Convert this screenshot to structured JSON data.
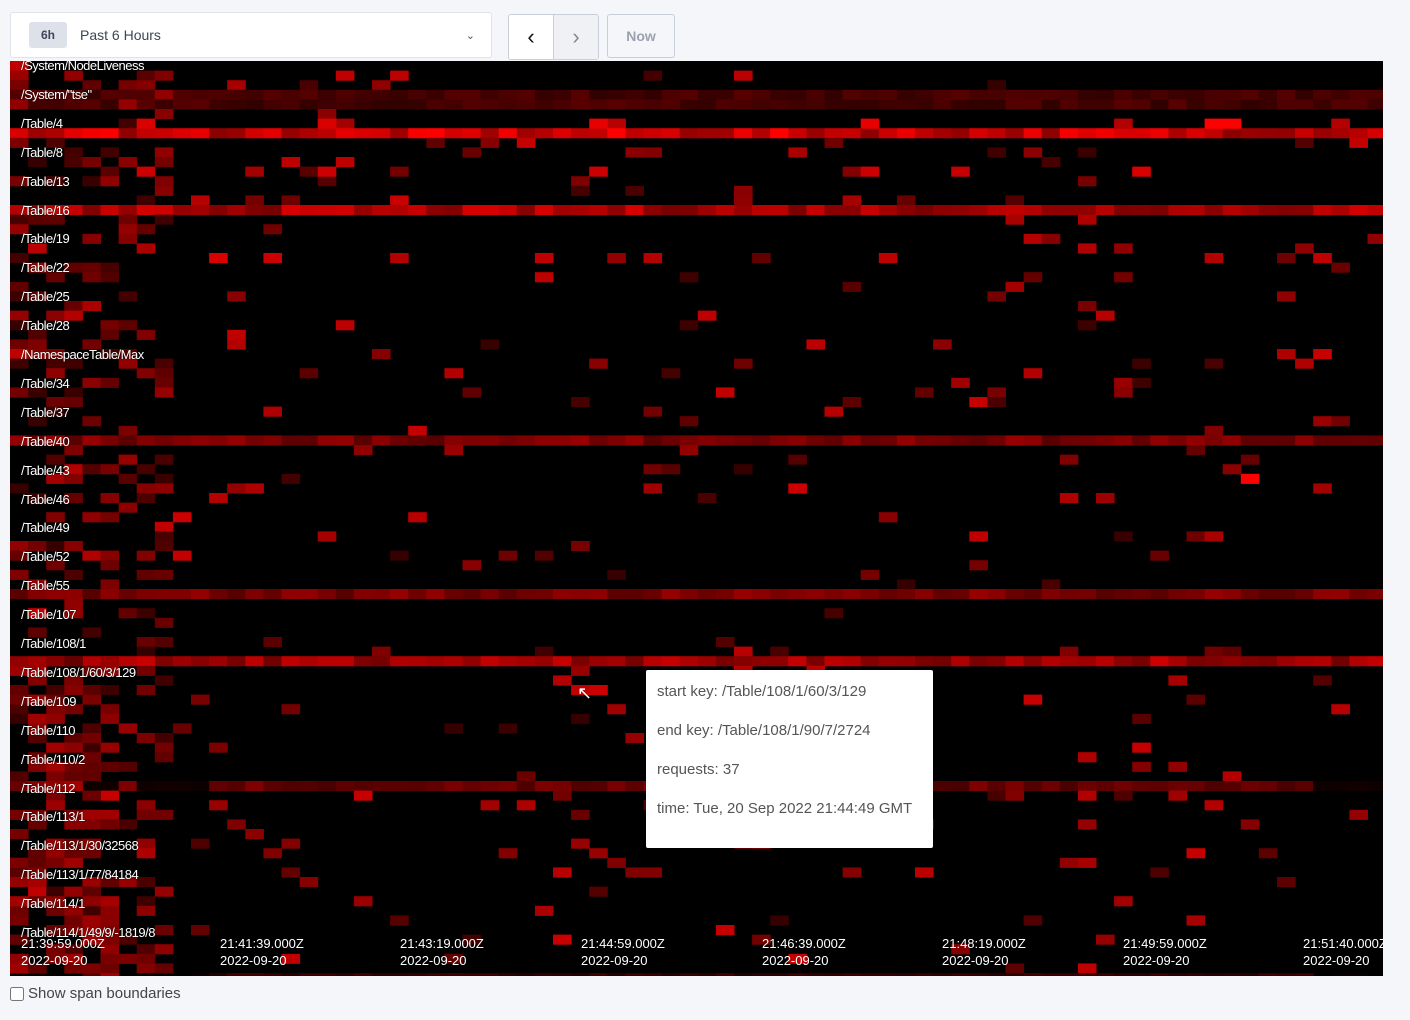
{
  "time_range": {
    "badge": "6h",
    "label": "Past 6 Hours"
  },
  "nav": {
    "prev": "‹",
    "next": "›",
    "now": "Now"
  },
  "key_labels": [
    "/System/NodeLiveness",
    "/System/\"tse\"",
    "/Table/4",
    "/Table/8",
    "/Table/13",
    "/Table/16",
    "/Table/19",
    "/Table/22",
    "/Table/25",
    "/Table/28",
    "/NamespaceTable/Max",
    "/Table/34",
    "/Table/37",
    "/Table/40",
    "/Table/43",
    "/Table/46",
    "/Table/49",
    "/Table/52",
    "/Table/55",
    "/Table/107",
    "/Table/108/1",
    "/Table/108/1/60/3/129",
    "/Table/109",
    "/Table/110",
    "/Table/110/2",
    "/Table/112",
    "/Table/113/1",
    "/Table/113/1/30/32568",
    "/Table/113/1/77/84184",
    "/Table/114/1",
    "/Table/114/1/49/9/-1819/8"
  ],
  "time_ticks": [
    {
      "time": "21:39:59.000Z",
      "date": "2022-09-20"
    },
    {
      "time": "21:41:39.000Z",
      "date": "2022-09-20"
    },
    {
      "time": "21:43:19.000Z",
      "date": "2022-09-20"
    },
    {
      "time": "21:44:59.000Z",
      "date": "2022-09-20"
    },
    {
      "time": "21:46:39.000Z",
      "date": "2022-09-20"
    },
    {
      "time": "21:48:19.000Z",
      "date": "2022-09-20"
    },
    {
      "time": "21:49:59.000Z",
      "date": "2022-09-20"
    },
    {
      "time": "21:51:40.000Z",
      "date": "2022-09-20"
    }
  ],
  "tooltip": {
    "start_key": "start key: /Table/108/1/60/3/129",
    "end_key": "end key: /Table/108/1/90/7/2724",
    "requests": "requests: 37",
    "time": "time: Tue, 20 Sep 2022 21:44:49 GMT"
  },
  "show_span_boundaries": {
    "label": "Show span boundaries",
    "checked": false
  },
  "colors": {
    "heat": "#ff0000",
    "background": "#000000"
  }
}
